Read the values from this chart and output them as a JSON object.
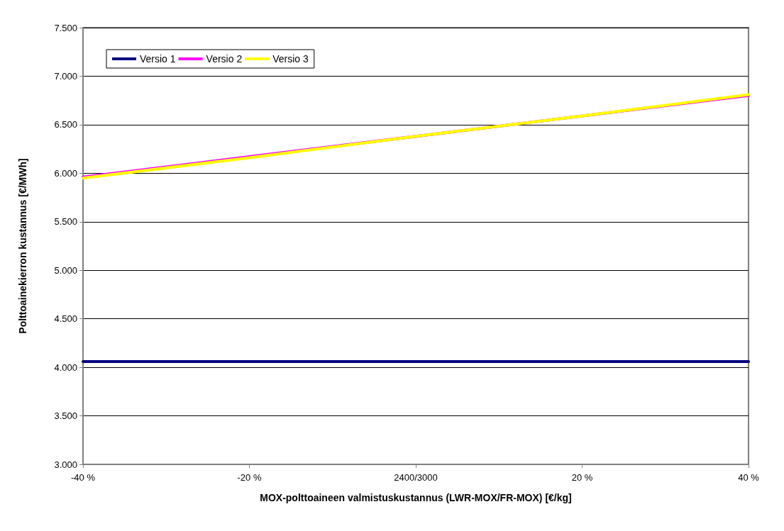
{
  "chart_data": {
    "type": "line",
    "xlabel": "MOX-polttoaineen valmistuskustannus (LWR-MOX/FR-MOX) [€/kg]",
    "ylabel": "Polttoainekierron kustannus [€/MWh]",
    "categories": [
      "-40 %",
      "-20 %",
      "2400/3000",
      "20 %",
      "40 %"
    ],
    "series": [
      {
        "name": "Versio 1",
        "color": "#000080",
        "values": [
          4.06,
          4.06,
          4.06,
          4.06,
          4.06
        ]
      },
      {
        "name": "Versio 2",
        "color": "#ff00ff",
        "values": [
          5.96,
          6.17,
          null,
          null,
          6.8
        ]
      },
      {
        "name": "Versio 3",
        "color": "#ffff00",
        "values": [
          5.95,
          6.16,
          6.38,
          6.59,
          6.81
        ]
      }
    ],
    "ylim": [
      3,
      7.5
    ],
    "yticks": [
      {
        "value": 3,
        "label": "3.000"
      },
      {
        "value": 3.5,
        "label": "3.500"
      },
      {
        "value": 4,
        "label": "4.000"
      },
      {
        "value": 4.5,
        "label": "4.500"
      },
      {
        "value": 5,
        "label": "5.000"
      },
      {
        "value": 5.5,
        "label": "5.500"
      },
      {
        "value": 6,
        "label": "6.000"
      },
      {
        "value": 6.5,
        "label": "6.500"
      },
      {
        "value": 7,
        "label": "7.000"
      },
      {
        "value": 7.5,
        "label": "7.500"
      }
    ],
    "grid": "y",
    "legend": "top left",
    "marker": "none",
    "line_style": "solid"
  }
}
